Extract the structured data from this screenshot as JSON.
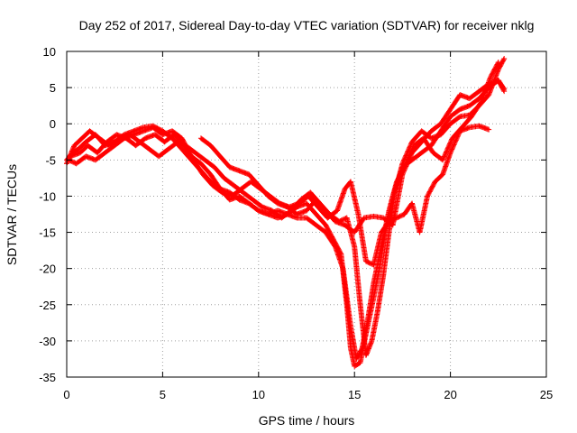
{
  "chart_data": {
    "type": "scatter",
    "title": "Day 252 of 2017, Sidereal Day-to-day VTEC variation (SDTVAR) for receiver nklg",
    "xlabel": "GPS time / hours",
    "ylabel": "SDTVAR / TECUs",
    "xlim": [
      0,
      25
    ],
    "ylim": [
      -35,
      10
    ],
    "xticks": [
      "0",
      "5",
      "10",
      "15",
      "20",
      "25"
    ],
    "yticks": [
      "10",
      "5",
      "0",
      "-5",
      "-10",
      "-15",
      "-20",
      "-25",
      "-30",
      "-35"
    ],
    "grid": true,
    "legend": "none",
    "marker": "plus",
    "color": "#ff0000",
    "series": [
      {
        "points": [
          [
            0,
            -5
          ],
          [
            0.3,
            -4
          ],
          [
            0.6,
            -3.5
          ],
          [
            1,
            -2.5
          ],
          [
            1.5,
            -1.5
          ],
          [
            2,
            -3
          ],
          [
            2.5,
            -2.5
          ],
          [
            3,
            -1.5
          ],
          [
            3.5,
            -1
          ],
          [
            4,
            -0.5
          ],
          [
            4.5,
            -0.3
          ],
          [
            5,
            -1
          ],
          [
            5.5,
            -2
          ],
          [
            6,
            -3.5
          ],
          [
            6.5,
            -5
          ],
          [
            7,
            -6.5
          ],
          [
            7.5,
            -8
          ],
          [
            8,
            -9
          ],
          [
            8.5,
            -9.5
          ],
          [
            9,
            -10.5
          ],
          [
            9.5,
            -11
          ],
          [
            10,
            -12
          ],
          [
            10.5,
            -12.5
          ],
          [
            11,
            -13
          ],
          [
            11.5,
            -12.5
          ],
          [
            12,
            -11.5
          ],
          [
            12.5,
            -11
          ],
          [
            13,
            -12.5
          ],
          [
            13.5,
            -14
          ],
          [
            14,
            -16.5
          ],
          [
            14.3,
            -18
          ],
          [
            14.6,
            -25
          ],
          [
            14.8,
            -31
          ],
          [
            15,
            -33.5
          ],
          [
            15.3,
            -33
          ],
          [
            15.6,
            -29
          ],
          [
            16,
            -24
          ],
          [
            16.3,
            -20
          ],
          [
            16.6,
            -15
          ],
          [
            17,
            -10
          ],
          [
            17.5,
            -6
          ],
          [
            18,
            -5
          ],
          [
            18.5,
            -4
          ],
          [
            19,
            -3
          ],
          [
            19.5,
            -1
          ],
          [
            20,
            1
          ],
          [
            20.5,
            2
          ],
          [
            21,
            2.5
          ],
          [
            21.5,
            3.5
          ],
          [
            22,
            5
          ],
          [
            22.5,
            6
          ],
          [
            22.8,
            4.5
          ]
        ]
      },
      {
        "points": [
          [
            0,
            -5.5
          ],
          [
            0.4,
            -3
          ],
          [
            0.8,
            -2
          ],
          [
            1.2,
            -1
          ],
          [
            1.7,
            -2
          ],
          [
            2.2,
            -3
          ],
          [
            2.8,
            -2
          ],
          [
            3.3,
            -1.5
          ],
          [
            3.8,
            -2.5
          ],
          [
            4.3,
            -3.5
          ],
          [
            4.8,
            -4.5
          ],
          [
            5.3,
            -3.5
          ],
          [
            5.8,
            -2.5
          ],
          [
            6.2,
            -3
          ],
          [
            6.7,
            -4
          ],
          [
            7.2,
            -5
          ],
          [
            7.7,
            -6
          ],
          [
            8.2,
            -7.5
          ],
          [
            8.7,
            -8.5
          ],
          [
            9.2,
            -9.5
          ],
          [
            9.7,
            -10.5
          ],
          [
            10.2,
            -11.5
          ],
          [
            10.7,
            -12
          ],
          [
            11.2,
            -13
          ],
          [
            11.7,
            -12
          ],
          [
            12.2,
            -10.5
          ],
          [
            12.7,
            -9.5
          ],
          [
            13.2,
            -11
          ],
          [
            13.7,
            -12.5
          ],
          [
            14.2,
            -13.5
          ],
          [
            14.6,
            -13
          ],
          [
            15,
            -17
          ],
          [
            15.3,
            -25
          ],
          [
            15.6,
            -32
          ],
          [
            15.9,
            -30
          ],
          [
            16.2,
            -26
          ],
          [
            16.5,
            -21
          ],
          [
            16.8,
            -15
          ],
          [
            17.1,
            -9.5
          ],
          [
            17.5,
            -5.5
          ],
          [
            18,
            -2.5
          ],
          [
            18.5,
            -1
          ],
          [
            19,
            -2
          ],
          [
            19.5,
            -1.5
          ],
          [
            20,
            0
          ],
          [
            20.5,
            1
          ],
          [
            21,
            1.2
          ],
          [
            21.5,
            2.5
          ],
          [
            22,
            4
          ],
          [
            22.5,
            7.5
          ],
          [
            22.8,
            9
          ]
        ]
      },
      {
        "points": [
          [
            0.2,
            -4.5
          ],
          [
            0.7,
            -4
          ],
          [
            1.1,
            -3
          ],
          [
            1.6,
            -4
          ],
          [
            2.1,
            -2.5
          ],
          [
            2.6,
            -1.5
          ],
          [
            3.1,
            -2
          ],
          [
            3.6,
            -3
          ],
          [
            4.1,
            -2
          ],
          [
            4.6,
            -1.5
          ],
          [
            5.1,
            -2.5
          ],
          [
            5.6,
            -1.5
          ],
          [
            6.1,
            -3
          ],
          [
            6.6,
            -5
          ],
          [
            7.1,
            -7
          ],
          [
            7.6,
            -8.5
          ],
          [
            8.1,
            -9.5
          ],
          [
            8.6,
            -10
          ],
          [
            9.1,
            -9
          ],
          [
            9.6,
            -8
          ],
          [
            10.1,
            -9
          ],
          [
            10.6,
            -10
          ],
          [
            11.1,
            -11
          ],
          [
            11.6,
            -11.5
          ],
          [
            12.1,
            -11
          ],
          [
            12.6,
            -10
          ],
          [
            13.1,
            -11.5
          ],
          [
            13.6,
            -13
          ],
          [
            14.1,
            -12
          ],
          [
            14.5,
            -9
          ],
          [
            14.8,
            -8
          ],
          [
            15.2,
            -12.5
          ],
          [
            15.6,
            -19
          ],
          [
            16,
            -19.5
          ],
          [
            16.4,
            -15
          ],
          [
            16.8,
            -13.5
          ],
          [
            17.2,
            -13
          ],
          [
            17.6,
            -12.5
          ],
          [
            18,
            -11
          ],
          [
            18.4,
            -15
          ],
          [
            18.8,
            -10
          ],
          [
            19.2,
            -8
          ],
          [
            19.6,
            -7
          ],
          [
            20,
            -4
          ],
          [
            20.5,
            -1
          ],
          [
            21,
            -0.5
          ],
          [
            21.5,
            -0.3
          ],
          [
            22,
            -0.8
          ]
        ]
      },
      {
        "points": [
          [
            0.1,
            -5
          ],
          [
            0.5,
            -5.5
          ],
          [
            1,
            -4.5
          ],
          [
            1.5,
            -5
          ],
          [
            2,
            -4
          ],
          [
            2.5,
            -3
          ],
          [
            3,
            -2
          ],
          [
            3.5,
            -1.5
          ],
          [
            4,
            -1
          ],
          [
            4.5,
            -0.5
          ],
          [
            5,
            -1.5
          ],
          [
            5.5,
            -1
          ],
          [
            6,
            -2
          ],
          [
            6.5,
            -4.5
          ],
          [
            7,
            -5.5
          ],
          [
            7.5,
            -7
          ],
          [
            8,
            -9
          ],
          [
            8.5,
            -10.5
          ],
          [
            9,
            -10
          ],
          [
            9.5,
            -11
          ],
          [
            10,
            -12
          ],
          [
            10.5,
            -12.5
          ],
          [
            11,
            -12
          ],
          [
            11.5,
            -12.5
          ],
          [
            12,
            -13
          ],
          [
            12.5,
            -13
          ],
          [
            13,
            -14
          ],
          [
            13.5,
            -15
          ],
          [
            14,
            -17
          ],
          [
            14.4,
            -20
          ],
          [
            14.8,
            -28
          ],
          [
            15.1,
            -32.5
          ],
          [
            15.4,
            -31
          ],
          [
            15.7,
            -27
          ],
          [
            16,
            -22
          ],
          [
            16.4,
            -17
          ],
          [
            16.8,
            -12
          ],
          [
            17.2,
            -8
          ],
          [
            17.6,
            -6
          ],
          [
            18.1,
            -3
          ],
          [
            18.6,
            -2
          ],
          [
            19.1,
            -4
          ],
          [
            19.6,
            -5
          ],
          [
            20.1,
            -2
          ],
          [
            20.6,
            -0.5
          ],
          [
            21.1,
            1
          ],
          [
            21.6,
            3
          ],
          [
            22.1,
            6.5
          ],
          [
            22.5,
            8.5
          ]
        ]
      },
      {
        "points": [
          [
            7,
            -2
          ],
          [
            7.5,
            -3
          ],
          [
            8,
            -4.5
          ],
          [
            8.5,
            -6
          ],
          [
            9,
            -6.5
          ],
          [
            9.5,
            -7
          ],
          [
            10,
            -8.5
          ],
          [
            10.5,
            -10
          ],
          [
            11,
            -11
          ],
          [
            11.5,
            -11.5
          ],
          [
            12,
            -12.5
          ],
          [
            12.5,
            -12
          ],
          [
            13,
            -10.5
          ],
          [
            13.5,
            -12
          ],
          [
            14,
            -13.5
          ],
          [
            14.5,
            -14
          ],
          [
            15,
            -15
          ],
          [
            15.5,
            -13
          ],
          [
            16,
            -12.8
          ],
          [
            16.5,
            -13
          ],
          [
            17,
            -14
          ],
          [
            17.5,
            -7
          ],
          [
            18,
            -4
          ],
          [
            18.5,
            -2.5
          ],
          [
            19,
            -1
          ],
          [
            19.5,
            0
          ],
          [
            20,
            2
          ],
          [
            20.5,
            4
          ],
          [
            21,
            3.5
          ],
          [
            21.5,
            4.5
          ],
          [
            22,
            5.5
          ],
          [
            22.5,
            6
          ],
          [
            22.8,
            4.8
          ]
        ]
      }
    ]
  }
}
